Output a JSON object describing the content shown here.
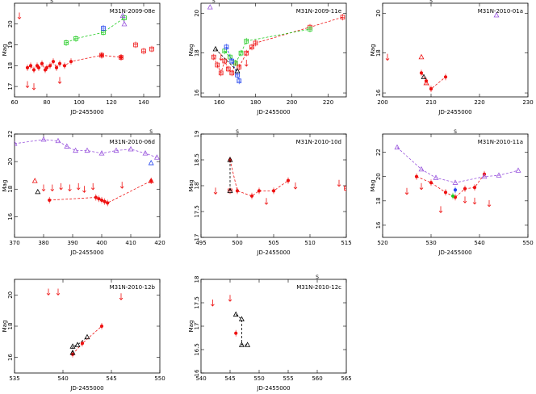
{
  "colors": {
    "red": "#ee1111",
    "green": "#22cc22",
    "blue": "#2244ee",
    "violet": "#9955dd",
    "black": "#000000",
    "orange": "#ff9900"
  },
  "chart_data": [
    {
      "type": "scatter",
      "title": "M31N-2009-08e",
      "xlabel": "JD-2455000",
      "ylabel": "Mag",
      "xlim": [
        60,
        150
      ],
      "ylim": [
        21,
        16.5
      ],
      "xticks": [
        60,
        80,
        100,
        120,
        140
      ],
      "yticks": [
        17,
        18,
        19,
        20
      ],
      "top_mark": "S",
      "top_mark_x": 83,
      "series": [
        {
          "name": "R",
          "color": "red",
          "marker": "circle",
          "line": true,
          "x": [
            68,
            70,
            72,
            74,
            75,
            77,
            79,
            80,
            82,
            84,
            86,
            88,
            91,
            95,
            114,
            126
          ],
          "y": [
            17.9,
            18.0,
            17.8,
            18.0,
            17.9,
            18.1,
            17.8,
            17.9,
            18.0,
            18.2,
            17.9,
            18.1,
            18.0,
            18.2,
            18.5,
            18.4
          ]
        },
        {
          "name": "R-open",
          "color": "red",
          "marker": "square",
          "line": false,
          "x": [
            114,
            126,
            135,
            140,
            145
          ],
          "y": [
            18.5,
            18.4,
            19.0,
            18.7,
            18.8
          ]
        },
        {
          "name": "V",
          "color": "green",
          "marker": "square",
          "line": true,
          "x": [
            92,
            98,
            115,
            128
          ],
          "y": [
            19.1,
            19.3,
            19.6,
            20.3
          ]
        },
        {
          "name": "B",
          "color": "blue",
          "marker": "square",
          "line": true,
          "x": [
            115
          ],
          "y": [
            19.8
          ]
        },
        {
          "name": "UV",
          "color": "violet",
          "marker": "triangle",
          "line": true,
          "x": [
            127,
            128
          ],
          "y": [
            20.4,
            20.0
          ]
        },
        {
          "name": "R-limits",
          "color": "red",
          "marker": "arrow",
          "line": false,
          "x": [
            63,
            68,
            72,
            88
          ],
          "y": [
            20.4,
            17.1,
            17.0,
            17.3
          ]
        }
      ]
    },
    {
      "type": "scatter",
      "title": "M31N-2009-11e",
      "xlabel": "JD-2455000",
      "ylabel": "Mag",
      "xlim": [
        150,
        230
      ],
      "ylim": [
        20.5,
        15.8
      ],
      "xticks": [
        160,
        180,
        200,
        220
      ],
      "yticks": [
        16,
        18,
        20
      ],
      "top_mark": "S",
      "top_mark_x": 157,
      "series": [
        {
          "name": "R",
          "color": "red",
          "marker": "square",
          "line": true,
          "x": [
            157,
            159,
            161,
            163,
            165,
            167,
            169,
            171,
            175,
            178,
            180,
            210,
            228
          ],
          "y": [
            17.8,
            17.4,
            17.0,
            17.6,
            17.2,
            17.0,
            17.5,
            17.3,
            18.0,
            18.3,
            18.5,
            19.3,
            19.8
          ]
        },
        {
          "name": "G",
          "color": "green",
          "marker": "square",
          "line": true,
          "x": [
            163,
            166,
            169,
            172,
            175,
            210
          ],
          "y": [
            18.1,
            17.8,
            17.5,
            18.0,
            18.6,
            19.2
          ]
        },
        {
          "name": "B",
          "color": "blue",
          "marker": "square",
          "line": true,
          "x": [
            164,
            167,
            170,
            171
          ],
          "y": [
            18.3,
            17.6,
            16.9,
            16.6
          ]
        },
        {
          "name": "Black",
          "color": "black",
          "marker": "triangle",
          "line": true,
          "x": [
            158,
            170
          ],
          "y": [
            18.2,
            17.1
          ]
        },
        {
          "name": "UV",
          "color": "violet",
          "marker": "triangle",
          "line": false,
          "x": [
            155
          ],
          "y": [
            20.3
          ]
        },
        {
          "name": "R-limits",
          "color": "red",
          "marker": "arrow",
          "line": false,
          "x": [
            161,
            175
          ],
          "y": [
            17.8,
            17.5
          ]
        }
      ]
    },
    {
      "type": "scatter",
      "title": "M31N-2010-01a",
      "xlabel": "JD-2455000",
      "ylabel": "Mag",
      "xlim": [
        200,
        230
      ],
      "ylim": [
        20.5,
        15.8
      ],
      "xticks": [
        200,
        210,
        220,
        230
      ],
      "yticks": [
        16,
        18,
        20
      ],
      "top_mark": "S",
      "top_mark_x": 210,
      "series": [
        {
          "name": "R",
          "color": "red",
          "marker": "circle",
          "line": true,
          "x": [
            208,
            209,
            210,
            213
          ],
          "y": [
            17.0,
            16.6,
            16.2,
            16.8
          ]
        },
        {
          "name": "R-tri",
          "color": "red",
          "marker": "triangle",
          "line": false,
          "x": [
            208,
            209
          ],
          "y": [
            17.8,
            16.5
          ]
        },
        {
          "name": "Black",
          "color": "black",
          "marker": "triangle",
          "line": false,
          "x": [
            208.5
          ],
          "y": [
            16.8
          ]
        },
        {
          "name": "UV",
          "color": "violet",
          "marker": "triangle",
          "line": false,
          "x": [
            223.5
          ],
          "y": [
            19.9
          ]
        },
        {
          "name": "R-limits",
          "color": "red",
          "marker": "arrow",
          "line": false,
          "x": [
            201
          ],
          "y": [
            17.8
          ]
        }
      ]
    },
    {
      "type": "scatter",
      "title": "M31N-2010-06d",
      "xlabel": "JD-2455000",
      "ylabel": "Mag",
      "xlim": [
        370,
        420
      ],
      "ylim": [
        22,
        14.5
      ],
      "xticks": [
        370,
        380,
        390,
        400,
        410,
        420
      ],
      "yticks": [
        16,
        18,
        20,
        22
      ],
      "top_mark": "S",
      "top_mark_x": 417,
      "series": [
        {
          "name": "R",
          "color": "red",
          "marker": "circle",
          "line": true,
          "x": [
            382,
            398,
            399,
            400,
            401,
            402,
            417
          ],
          "y": [
            17.2,
            17.4,
            17.3,
            17.2,
            17.1,
            17.0,
            18.6
          ]
        },
        {
          "name": "R-tri",
          "color": "red",
          "marker": "triangle",
          "line": false,
          "x": [
            377,
            417
          ],
          "y": [
            18.6,
            18.6
          ]
        },
        {
          "name": "Black",
          "color": "black",
          "marker": "triangle",
          "line": false,
          "x": [
            378
          ],
          "y": [
            17.8
          ]
        },
        {
          "name": "B",
          "color": "blue",
          "marker": "triangle",
          "line": false,
          "x": [
            417
          ],
          "y": [
            19.9
          ]
        },
        {
          "name": "UV",
          "color": "violet",
          "marker": "triangle",
          "line": true,
          "x": [
            370,
            380,
            385,
            388,
            391,
            395,
            400,
            405,
            410,
            415,
            419
          ],
          "y": [
            21.3,
            21.6,
            21.5,
            21.1,
            20.8,
            20.8,
            20.6,
            20.8,
            20.9,
            20.6,
            20.3
          ]
        },
        {
          "name": "R-limits",
          "color": "red",
          "marker": "arrow",
          "line": false,
          "x": [
            380,
            383,
            386,
            389,
            392,
            394,
            397,
            407
          ],
          "y": [
            18.1,
            18.1,
            18.2,
            18.1,
            18.2,
            18.0,
            18.2,
            18.3
          ]
        }
      ]
    },
    {
      "type": "scatter",
      "title": "M31N-2010-10d",
      "xlabel": "JD-2455000",
      "ylabel": "Mag",
      "xlim": [
        495,
        515
      ],
      "ylim": [
        19,
        17
      ],
      "xticks": [
        495,
        500,
        505,
        510,
        515
      ],
      "yticks": [
        17,
        17.5,
        18,
        18.5,
        19
      ],
      "top_mark": "S",
      "top_mark_x": 500,
      "series": [
        {
          "name": "R",
          "color": "red",
          "marker": "circle",
          "line": true,
          "x": [
            499,
            500,
            502,
            503,
            505,
            507
          ],
          "y": [
            18.5,
            17.9,
            17.8,
            17.9,
            17.9,
            18.1
          ]
        },
        {
          "name": "R-open",
          "color": "red",
          "marker": "square",
          "line": false,
          "x": [
            499,
            515
          ],
          "y": [
            17.9,
            17.95
          ]
        },
        {
          "name": "Black",
          "color": "black",
          "marker": "triangle",
          "line": true,
          "x": [
            499,
            499
          ],
          "y": [
            18.5,
            17.9
          ]
        },
        {
          "name": "R-limits",
          "color": "red",
          "marker": "arrow",
          "line": false,
          "x": [
            497,
            504,
            508,
            514
          ],
          "y": [
            17.9,
            17.7,
            18.0,
            18.05
          ]
        }
      ]
    },
    {
      "type": "scatter",
      "title": "M31N-2010-11a",
      "xlabel": "JD-2455000",
      "ylabel": "Mag",
      "xlim": [
        520,
        550
      ],
      "ylim": [
        23.5,
        15
      ],
      "xticks": [
        520,
        530,
        540,
        550
      ],
      "yticks": [
        16,
        18,
        20,
        22
      ],
      "top_mark": "S",
      "top_mark_x": 535,
      "series": [
        {
          "name": "R",
          "color": "red",
          "marker": "circle",
          "line": true,
          "x": [
            527,
            530,
            533,
            535,
            537,
            539,
            541
          ],
          "y": [
            20.0,
            19.5,
            18.7,
            18.3,
            19.0,
            19.1,
            20.2
          ]
        },
        {
          "name": "G",
          "color": "green",
          "marker": "circle",
          "line": false,
          "x": [
            534.5
          ],
          "y": [
            18.4
          ]
        },
        {
          "name": "B",
          "color": "blue",
          "marker": "circle",
          "line": false,
          "x": [
            535
          ],
          "y": [
            18.9
          ]
        },
        {
          "name": "UV",
          "color": "violet",
          "marker": "triangle",
          "line": true,
          "x": [
            523,
            528,
            531,
            535,
            541,
            544,
            548
          ],
          "y": [
            22.4,
            20.6,
            19.9,
            19.5,
            20.0,
            20.1,
            20.5
          ]
        },
        {
          "name": "R-limits",
          "color": "red",
          "marker": "arrow",
          "line": false,
          "x": [
            525,
            528,
            532,
            537,
            539,
            542
          ],
          "y": [
            18.8,
            19.2,
            17.3,
            18.1,
            18.0,
            17.8
          ]
        }
      ]
    },
    {
      "type": "scatter",
      "title": "M31N-2010-12b",
      "xlabel": "JD-2455000",
      "ylabel": "Mag",
      "xlim": [
        535,
        550
      ],
      "ylim": [
        21,
        15
      ],
      "xticks": [
        535,
        540,
        545,
        550
      ],
      "yticks": [
        16,
        18,
        20
      ],
      "top_mark": "",
      "top_mark_x": 0,
      "series": [
        {
          "name": "R",
          "color": "red",
          "marker": "circle",
          "line": true,
          "x": [
            541,
            542,
            544
          ],
          "y": [
            16.2,
            16.9,
            18.0
          ]
        },
        {
          "name": "Black",
          "color": "black",
          "marker": "triangle",
          "line": true,
          "x": [
            541,
            541,
            541.5,
            542.5
          ],
          "y": [
            16.3,
            16.7,
            16.8,
            17.3
          ]
        },
        {
          "name": "R-limits",
          "color": "red",
          "marker": "arrow",
          "line": false,
          "x": [
            538.5,
            539.5,
            546
          ],
          "y": [
            20.2,
            20.2,
            19.9
          ]
        }
      ]
    },
    {
      "type": "scatter",
      "title": "M31N-2010-12c",
      "xlabel": "JD-2455000",
      "ylabel": "Mag",
      "xlim": [
        540,
        565
      ],
      "ylim": [
        18,
        16
      ],
      "xticks": [
        540,
        545,
        550,
        555,
        560,
        565
      ],
      "yticks": [
        16,
        16.5,
        17,
        17.5,
        18
      ],
      "top_mark": "S",
      "top_mark_x": 560,
      "series": [
        {
          "name": "R",
          "color": "red",
          "marker": "circle",
          "line": false,
          "x": [
            546
          ],
          "y": [
            16.85
          ]
        },
        {
          "name": "Black",
          "color": "black",
          "marker": "triangle",
          "line": true,
          "x": [
            546,
            547,
            547,
            548
          ],
          "y": [
            17.25,
            17.15,
            16.6,
            16.6
          ]
        },
        {
          "name": "R-limits",
          "color": "red",
          "marker": "arrow",
          "line": false,
          "x": [
            542,
            545
          ],
          "y": [
            17.5,
            17.6
          ]
        }
      ]
    }
  ]
}
